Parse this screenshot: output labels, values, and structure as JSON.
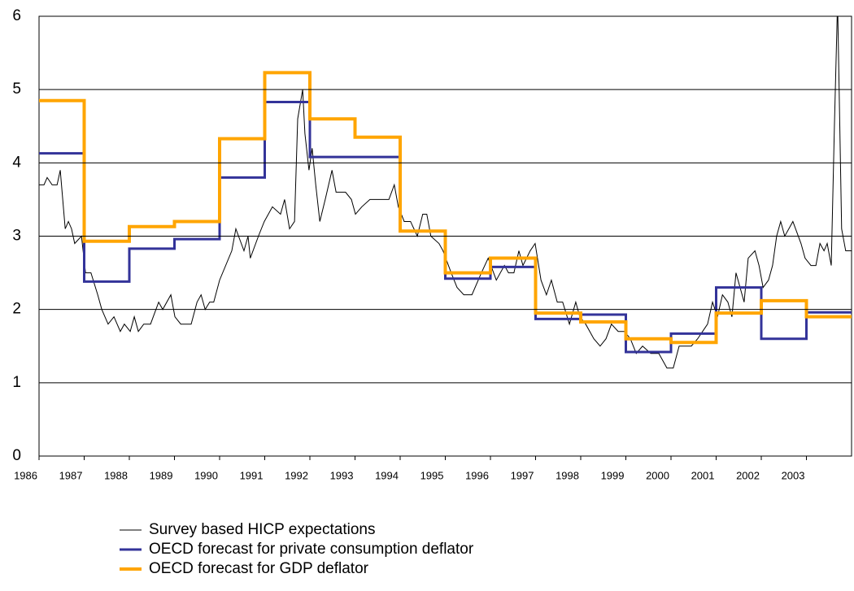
{
  "chart_data": {
    "type": "line",
    "xlim": [
      1986,
      2004
    ],
    "xticks": [
      1986,
      1987,
      1988,
      1989,
      1990,
      1991,
      1992,
      1993,
      1994,
      1995,
      1996,
      1997,
      1998,
      1999,
      2000,
      2001,
      2002,
      2003
    ],
    "ylim": [
      0,
      6
    ],
    "yticks": [
      0,
      1,
      2,
      3,
      4,
      5,
      6
    ],
    "grid": true,
    "legend": "bottom",
    "series": [
      {
        "name": "Survey based HICP expectations",
        "color": "#000000",
        "width": 1,
        "x": [
          1986.0,
          1986.11,
          1986.18,
          1986.29,
          1986.4,
          1986.47,
          1986.58,
          1986.65,
          1986.72,
          1986.79,
          1986.94,
          1987.03,
          1987.15,
          1987.3,
          1987.39,
          1987.53,
          1987.66,
          1987.8,
          1987.89,
          1988.02,
          1988.11,
          1988.2,
          1988.32,
          1988.47,
          1988.65,
          1988.74,
          1988.92,
          1989.01,
          1989.14,
          1989.37,
          1989.5,
          1989.59,
          1989.68,
          1989.78,
          1989.87,
          1990.0,
          1990.27,
          1990.36,
          1990.54,
          1990.63,
          1990.68,
          1990.86,
          1990.99,
          1991.17,
          1991.35,
          1991.44,
          1991.55,
          1991.66,
          1991.73,
          1991.84,
          1991.89,
          1991.98,
          1992.05,
          1992.13,
          1992.22,
          1992.34,
          1992.49,
          1992.58,
          1992.79,
          1992.92,
          1993.01,
          1993.15,
          1993.33,
          1993.6,
          1993.75,
          1993.87,
          1993.96,
          1994.09,
          1994.23,
          1994.38,
          1994.5,
          1994.59,
          1994.68,
          1994.86,
          1994.95,
          1995.13,
          1995.26,
          1995.41,
          1995.59,
          1995.8,
          1995.95,
          1996.13,
          1996.31,
          1996.4,
          1996.52,
          1996.63,
          1996.72,
          1996.88,
          1996.99,
          1997.12,
          1997.24,
          1997.35,
          1997.48,
          1997.6,
          1997.75,
          1997.89,
          1997.98,
          1998.11,
          1998.29,
          1998.43,
          1998.56,
          1998.68,
          1998.83,
          1998.97,
          1999.1,
          1999.23,
          1999.37,
          1999.55,
          1999.73,
          1999.82,
          1999.91,
          2000.05,
          2000.18,
          2000.45,
          2000.59,
          2000.7,
          2000.81,
          2000.92,
          2001.03,
          2001.14,
          2001.26,
          2001.35,
          2001.44,
          2001.53,
          2001.62,
          2001.71,
          2001.86,
          2001.95,
          2002.04,
          2002.16,
          2002.25,
          2002.34,
          2002.43,
          2002.52,
          2002.61,
          2002.7,
          2002.88,
          2002.97,
          2003.1,
          2003.21,
          2003.3,
          2003.39,
          2003.46,
          2003.55,
          2003.62,
          2003.69,
          2003.78,
          2003.87,
          2004.0
        ],
        "values": [
          3.7,
          3.7,
          3.8,
          3.7,
          3.7,
          3.9,
          3.1,
          3.2,
          3.1,
          2.9,
          3.0,
          2.5,
          2.5,
          2.2,
          2.0,
          1.8,
          1.9,
          1.7,
          1.8,
          1.7,
          1.9,
          1.7,
          1.8,
          1.8,
          2.1,
          2.0,
          2.2,
          1.9,
          1.8,
          1.8,
          2.1,
          2.2,
          2.0,
          2.1,
          2.1,
          2.4,
          2.8,
          3.1,
          2.8,
          3.0,
          2.7,
          3.0,
          3.2,
          3.4,
          3.3,
          3.5,
          3.1,
          3.2,
          4.6,
          5.0,
          4.4,
          3.9,
          4.2,
          3.7,
          3.2,
          3.5,
          3.9,
          3.6,
          3.6,
          3.5,
          3.3,
          3.4,
          3.5,
          3.5,
          3.5,
          3.7,
          3.4,
          3.2,
          3.2,
          3.0,
          3.3,
          3.3,
          3.0,
          2.9,
          2.8,
          2.5,
          2.3,
          2.2,
          2.2,
          2.5,
          2.7,
          2.4,
          2.6,
          2.5,
          2.5,
          2.8,
          2.6,
          2.8,
          2.9,
          2.4,
          2.2,
          2.4,
          2.1,
          2.1,
          1.8,
          2.1,
          1.9,
          1.8,
          1.6,
          1.5,
          1.6,
          1.8,
          1.7,
          1.7,
          1.6,
          1.4,
          1.5,
          1.4,
          1.4,
          1.3,
          1.2,
          1.2,
          1.5,
          1.5,
          1.6,
          1.7,
          1.8,
          2.1,
          1.9,
          2.2,
          2.1,
          1.9,
          2.5,
          2.3,
          2.1,
          2.7,
          2.8,
          2.6,
          2.3,
          2.4,
          2.6,
          3.0,
          3.2,
          3.0,
          3.1,
          3.2,
          2.9,
          2.7,
          2.6,
          2.6,
          2.9,
          2.8,
          2.9,
          2.6,
          4.5,
          6.2,
          3.1,
          2.8,
          2.8
        ]
      },
      {
        "name": "OECD forecast for private consumption deflator",
        "color": "#333399",
        "width": 3,
        "x": [
          1986,
          1987,
          1987,
          1988,
          1988,
          1989,
          1989,
          1990,
          1990,
          1991,
          1991,
          1992,
          1992,
          1993,
          1993,
          1994,
          1994,
          1995,
          1995,
          1996,
          1996,
          1997,
          1997,
          1998,
          1998,
          1999,
          1999,
          2000,
          2000,
          2001,
          2001,
          2002,
          2002,
          2003,
          2003,
          2004
        ],
        "values": [
          4.13,
          4.13,
          2.38,
          2.38,
          2.83,
          2.83,
          2.96,
          2.96,
          3.8,
          3.8,
          4.83,
          4.83,
          4.08,
          4.08,
          4.08,
          4.08,
          3.07,
          3.07,
          2.42,
          2.42,
          2.58,
          2.58,
          1.87,
          1.87,
          1.93,
          1.93,
          1.42,
          1.42,
          1.67,
          1.67,
          2.3,
          2.3,
          1.6,
          1.6,
          1.96,
          1.96
        ]
      },
      {
        "name": "OECD forecast for GDP deflator",
        "color": "#ffa500",
        "width": 4,
        "x": [
          1986,
          1987,
          1987,
          1988,
          1988,
          1989,
          1989,
          1990,
          1990,
          1991,
          1991,
          1992,
          1992,
          1993,
          1993,
          1994,
          1994,
          1995,
          1995,
          1996,
          1996,
          1997,
          1997,
          1998,
          1998,
          1999,
          1999,
          2000,
          2000,
          2001,
          2001,
          2002,
          2002,
          2003,
          2003,
          2004
        ],
        "values": [
          4.85,
          4.85,
          2.93,
          2.93,
          3.13,
          3.13,
          3.2,
          3.2,
          4.33,
          4.33,
          5.23,
          5.23,
          4.6,
          4.6,
          4.35,
          4.35,
          3.07,
          3.07,
          2.5,
          2.5,
          2.7,
          2.7,
          1.95,
          1.95,
          1.83,
          1.83,
          1.6,
          1.6,
          1.55,
          1.55,
          1.95,
          1.95,
          2.12,
          2.12,
          1.9,
          1.9
        ]
      }
    ]
  }
}
